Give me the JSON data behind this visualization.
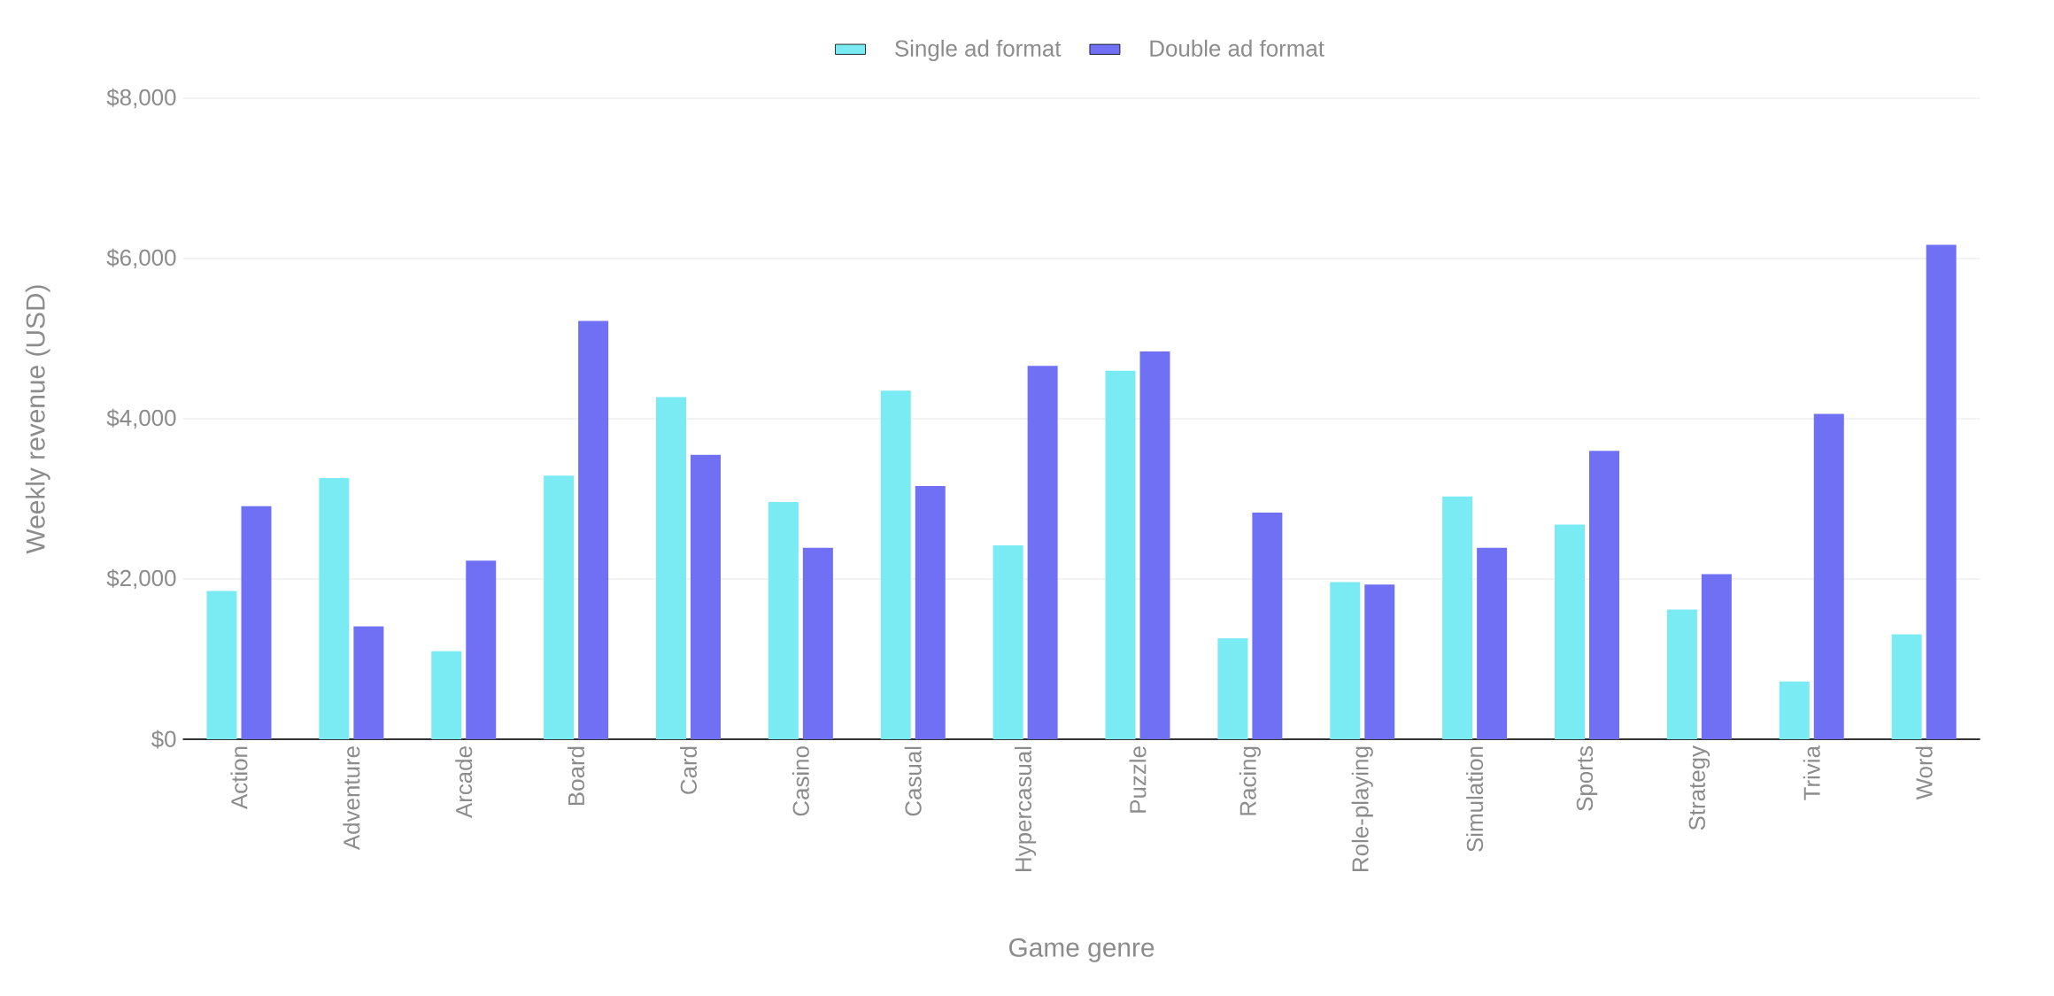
{
  "chart_data": {
    "type": "bar",
    "xlabel": "Game genre",
    "ylabel": "Weekly revenue (USD)",
    "categories": [
      "Action",
      "Adventure",
      "Arcade",
      "Board",
      "Card",
      "Casino",
      "Casual",
      "Hypercasual",
      "Puzzle",
      "Racing",
      "Role-playing",
      "Simulation",
      "Sports",
      "Strategy",
      "Trivia",
      "Word"
    ],
    "series": [
      {
        "name": "Single ad format",
        "color": "#7aeaf3",
        "values": [
          1850,
          3260,
          1100,
          3290,
          4270,
          2960,
          4350,
          2420,
          4600,
          1260,
          1960,
          3030,
          2680,
          1620,
          720,
          1310
        ]
      },
      {
        "name": "Double ad format",
        "color": "#7070f5",
        "values": [
          2910,
          1410,
          2230,
          5220,
          3550,
          2390,
          3160,
          4660,
          4840,
          2830,
          1930,
          2390,
          3600,
          2060,
          4060,
          6170
        ]
      }
    ],
    "ylim": [
      0,
      8000
    ],
    "yticks": [
      {
        "value": 0,
        "label": "$0"
      },
      {
        "value": 2000,
        "label": "$2,000"
      },
      {
        "value": 4000,
        "label": "$4,000"
      },
      {
        "value": 6000,
        "label": "$6,000"
      },
      {
        "value": 8000,
        "label": "$8,000"
      }
    ],
    "grid": "y",
    "legend": "top"
  }
}
